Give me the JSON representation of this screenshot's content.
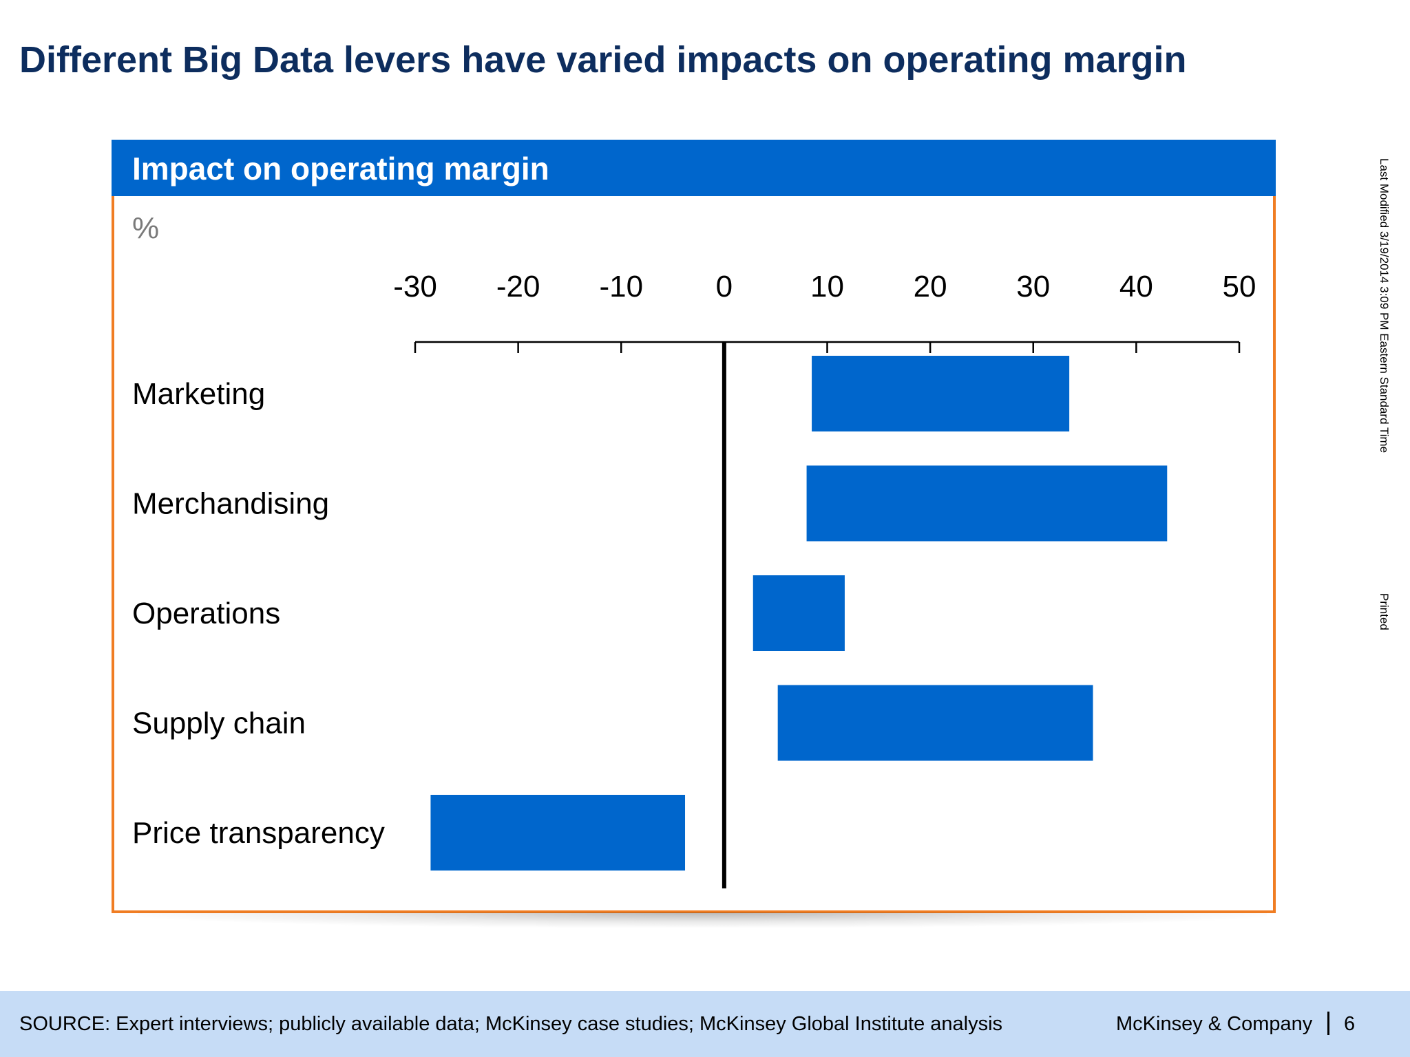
{
  "slide": {
    "title": "Different Big Data levers have varied impacts on operating margin",
    "side_note": "Last Modified 3/19/2014 3:09 PM Eastern Standard Time",
    "side_printed": "Printed",
    "footer": {
      "source": "SOURCE: Expert interviews; publicly available data; McKinsey case studies; McKinsey Global Institute analysis",
      "company": "McKinsey & Company",
      "page": "6"
    }
  },
  "chart_data": {
    "type": "bar",
    "orientation": "horizontal",
    "title": "Impact on operating margin",
    "unit": "%",
    "xlim": [
      -30,
      50
    ],
    "ticks": [
      -30,
      -20,
      -10,
      0,
      10,
      20,
      30,
      40,
      50
    ],
    "categories": [
      "Marketing",
      "Merchandising",
      "Operations",
      "Supply chain",
      "Price transparency"
    ],
    "ranges": [
      [
        8.5,
        33.5
      ],
      [
        8,
        43
      ],
      [
        2.8,
        11.7
      ],
      [
        5.2,
        35.8
      ],
      [
        -28.5,
        -3.8
      ]
    ],
    "bar_color": "#0066cc",
    "grid": false,
    "legend": "none"
  }
}
